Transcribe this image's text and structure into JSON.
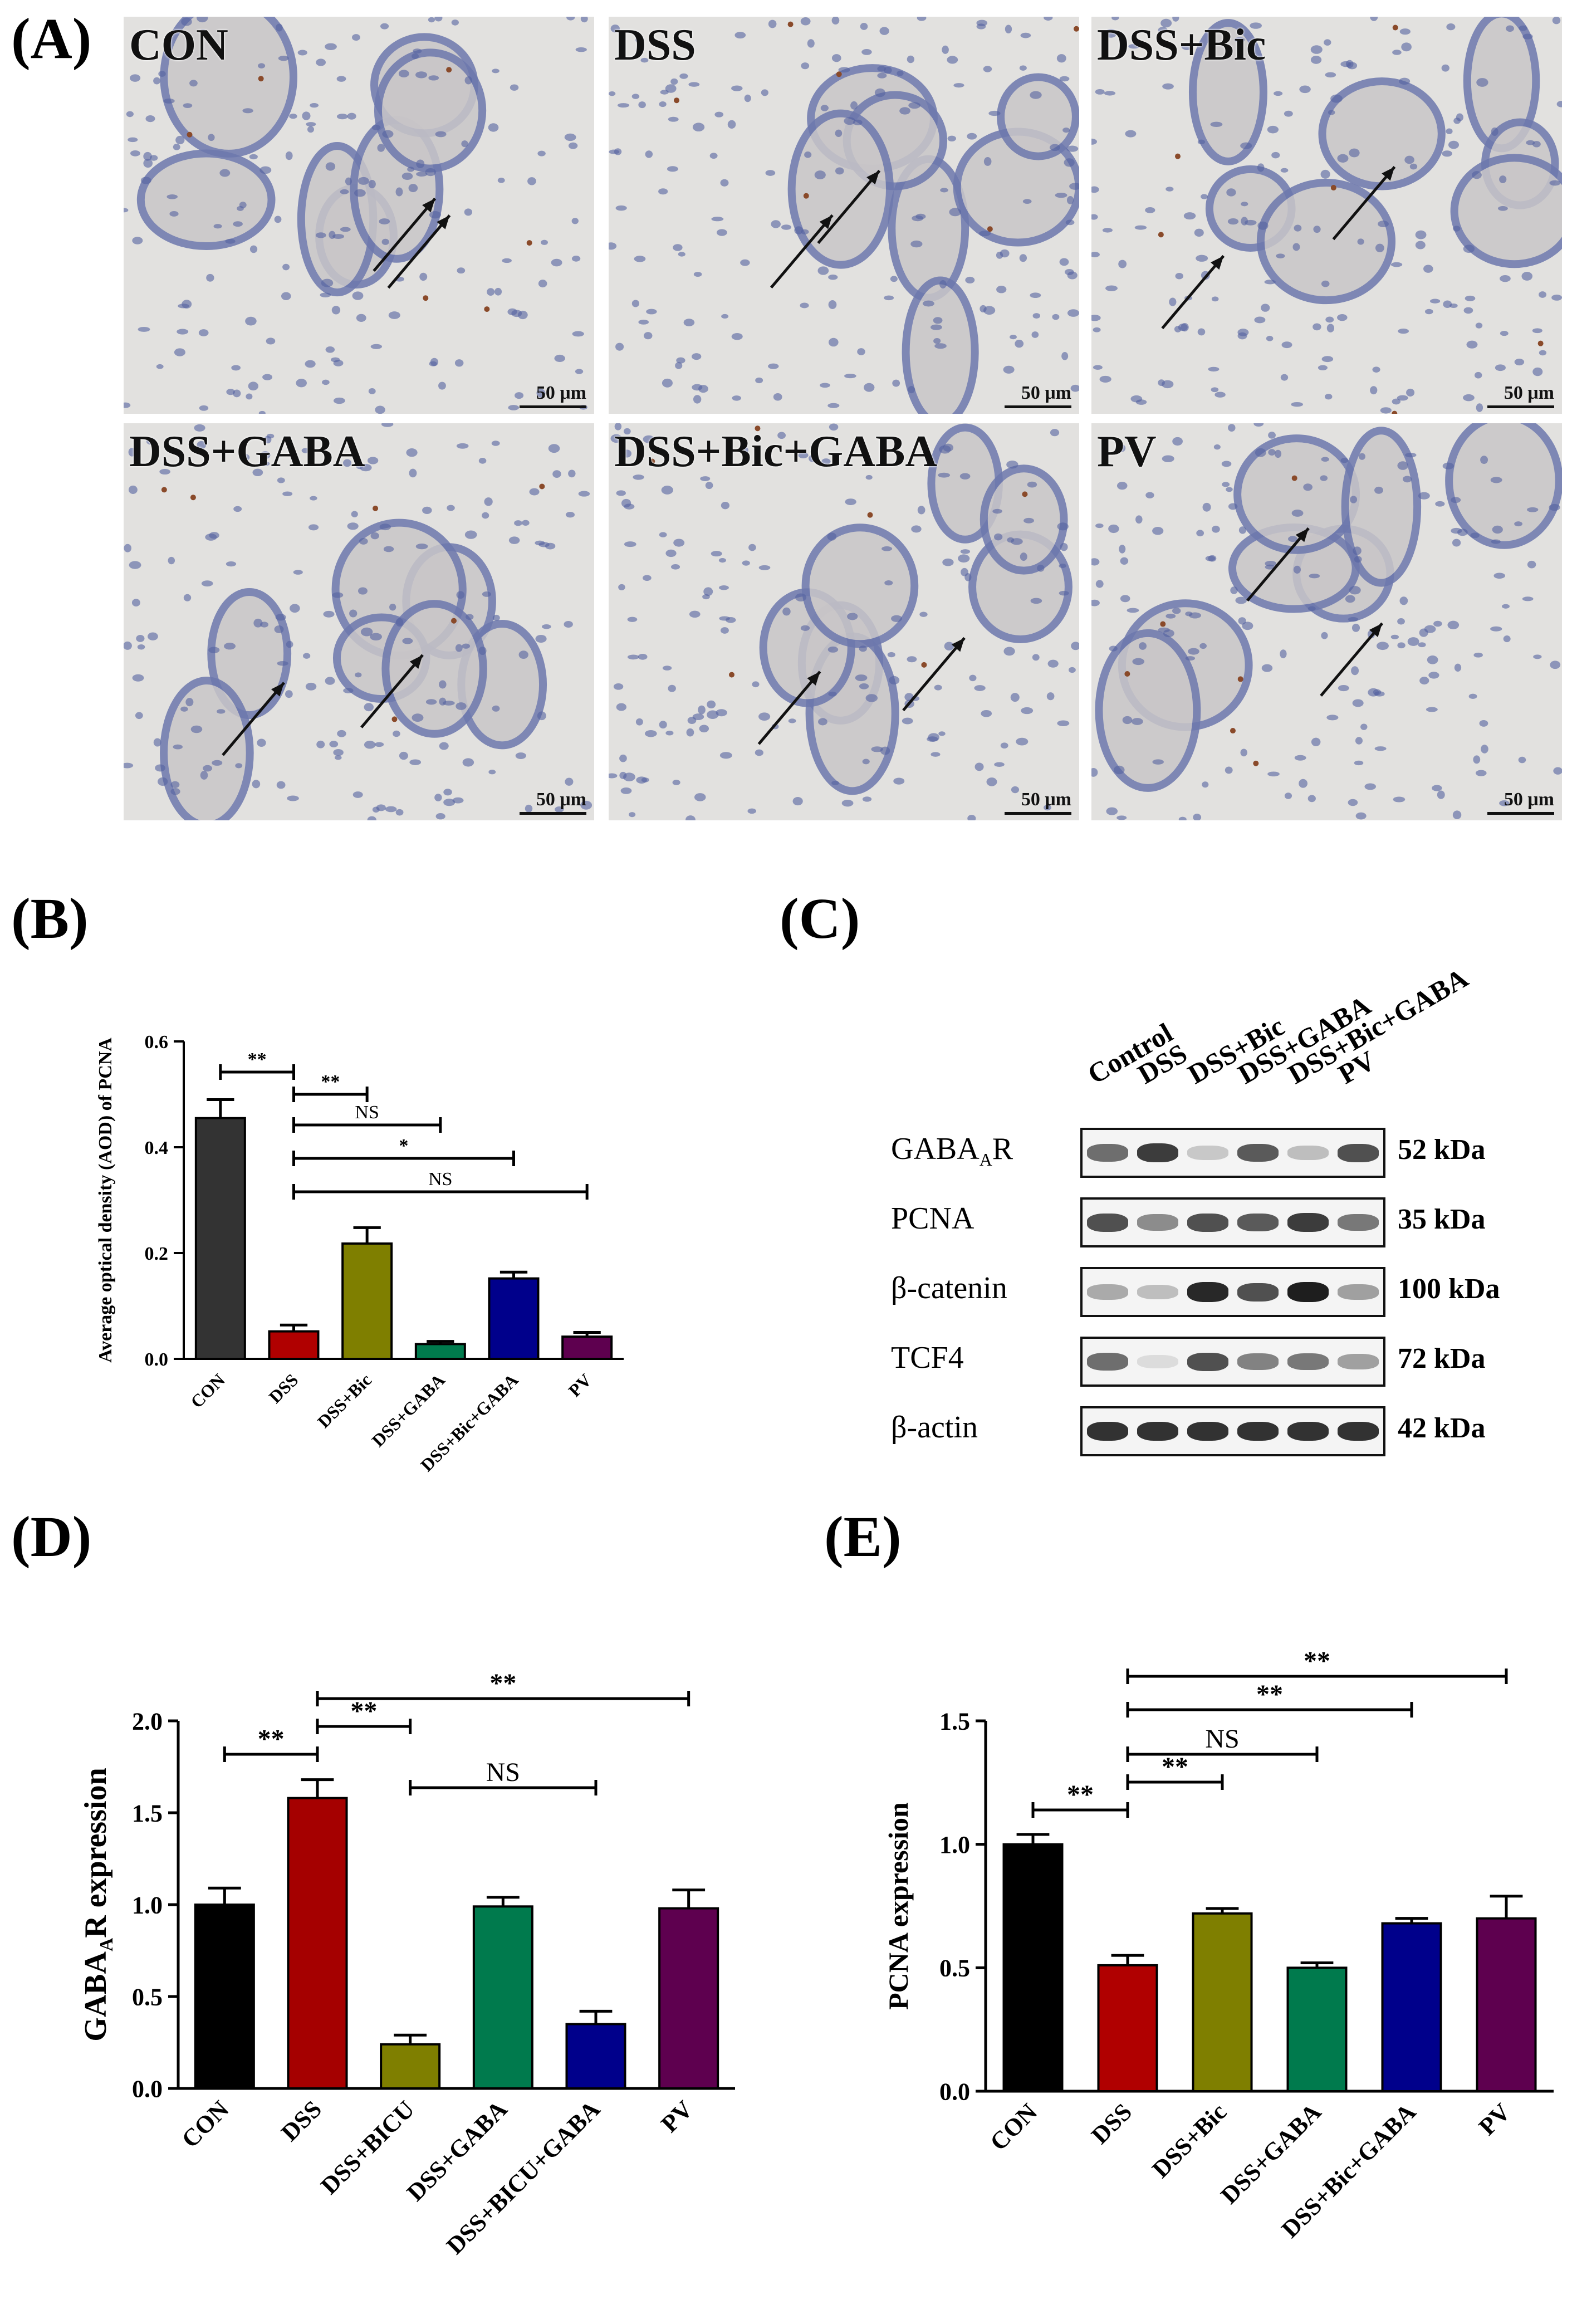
{
  "panels": {
    "A": "(A)",
    "B": "(B)",
    "C": "(C)",
    "D": "(D)",
    "E": "(E)"
  },
  "micrographs": [
    {
      "label": "CON",
      "scale": "50 μm"
    },
    {
      "label": "DSS",
      "scale": "50 μm"
    },
    {
      "label": "DSS+Bic",
      "scale": "50 μm"
    },
    {
      "label": "DSS+GABA",
      "scale": "50 μm"
    },
    {
      "label": "DSS+Bic+GABA",
      "scale": "50 μm"
    },
    {
      "label": "PV",
      "scale": "50 μm"
    }
  ],
  "western_blot": {
    "lanes": [
      "Control",
      "DSS",
      "DSS+Bic",
      "DSS+GABA",
      "DSS+Bic+GABA",
      "PV"
    ],
    "rows": [
      {
        "protein": "GABA",
        "sub": "A",
        "suffix": "R",
        "kda": "52 kDa",
        "intensity": [
          0.6,
          0.85,
          0.15,
          0.7,
          0.2,
          0.75
        ]
      },
      {
        "protein": "PCNA",
        "sub": "",
        "suffix": "",
        "kda": "35 kDa",
        "intensity": [
          0.75,
          0.45,
          0.75,
          0.7,
          0.85,
          0.55
        ]
      },
      {
        "protein": "β-catenin",
        "sub": "",
        "suffix": "",
        "kda": "100 kDa",
        "intensity": [
          0.3,
          0.2,
          0.95,
          0.75,
          1.0,
          0.35
        ]
      },
      {
        "protein": "TCF4",
        "sub": "",
        "suffix": "",
        "kda": "72 kDa",
        "intensity": [
          0.6,
          0.05,
          0.75,
          0.5,
          0.55,
          0.35
        ]
      },
      {
        "protein": "β-actin",
        "sub": "",
        "suffix": "",
        "kda": "42 kDa",
        "intensity": [
          0.9,
          0.9,
          0.9,
          0.9,
          0.9,
          0.9
        ]
      }
    ]
  },
  "chart_data": [
    {
      "id": "B",
      "type": "bar",
      "ylabel": "Average optical density (AOD) of  PCNA",
      "categories": [
        "CON",
        "DSS",
        "DSS+Bic",
        "DSS+GABA",
        "DSS+Bic+GABA",
        "PV"
      ],
      "values": [
        0.455,
        0.052,
        0.218,
        0.028,
        0.152,
        0.042
      ],
      "errors": [
        0.035,
        0.012,
        0.03,
        0.005,
        0.012,
        0.008
      ],
      "colors": [
        "#333333",
        "#b00000",
        "#7f7f00",
        "#007a4d",
        "#00008b",
        "#5e004f"
      ],
      "ylim": [
        0,
        0.6
      ],
      "yticks": [
        "0.0",
        "0.2",
        "0.4",
        "0.6"
      ],
      "significance": [
        {
          "from": 0,
          "to": 1,
          "label": "**"
        },
        {
          "from": 1,
          "to": 2,
          "label": "**"
        },
        {
          "from": 1,
          "to": 3,
          "label": "NS"
        },
        {
          "from": 1,
          "to": 4,
          "label": "*"
        },
        {
          "from": 1,
          "to": 5,
          "label": "NS"
        }
      ]
    },
    {
      "id": "D",
      "type": "bar",
      "ylabel": "GABA",
      "ylabel_sub": "A",
      "ylabel_rest": "R expression",
      "categories": [
        "CON",
        "DSS",
        "DSS+BICU",
        "DSS+GABA",
        "DSS+BICU+GABA",
        "PV"
      ],
      "values": [
        1.0,
        1.58,
        0.24,
        0.99,
        0.35,
        0.98
      ],
      "errors": [
        0.09,
        0.1,
        0.05,
        0.05,
        0.07,
        0.1
      ],
      "colors": [
        "#000000",
        "#a50000",
        "#7f7f00",
        "#007a4d",
        "#00008b",
        "#5e004f"
      ],
      "ylim": [
        0,
        2.0
      ],
      "yticks": [
        "0.0",
        "0.5",
        "1.0",
        "1.5",
        "2.0"
      ],
      "significance": [
        {
          "from": 0,
          "to": 1,
          "label": "**"
        },
        {
          "from": 1,
          "to": 2,
          "label": "**"
        },
        {
          "from": 1,
          "to": 5,
          "label": "**"
        },
        {
          "from": 2,
          "to": 4,
          "label": "NS"
        }
      ]
    },
    {
      "id": "E",
      "type": "bar",
      "ylabel": "PCNA expression",
      "categories": [
        "CON",
        "DSS",
        "DSS+Bic",
        "DSS+GABA",
        "DSS+Bic+GABA",
        "PV"
      ],
      "values": [
        1.0,
        0.51,
        0.72,
        0.5,
        0.68,
        0.7
      ],
      "errors": [
        0.04,
        0.04,
        0.02,
        0.02,
        0.02,
        0.09
      ],
      "colors": [
        "#000000",
        "#b00000",
        "#7f7f00",
        "#007a4d",
        "#00008b",
        "#5e004f"
      ],
      "ylim": [
        0,
        1.5
      ],
      "yticks": [
        "0.0",
        "0.5",
        "1.0",
        "1.5"
      ],
      "significance": [
        {
          "from": 0,
          "to": 1,
          "label": "**"
        },
        {
          "from": 1,
          "to": 2,
          "label": "**"
        },
        {
          "from": 1,
          "to": 3,
          "label": "NS"
        },
        {
          "from": 1,
          "to": 4,
          "label": "**"
        },
        {
          "from": 1,
          "to": 5,
          "label": "**"
        }
      ]
    }
  ]
}
